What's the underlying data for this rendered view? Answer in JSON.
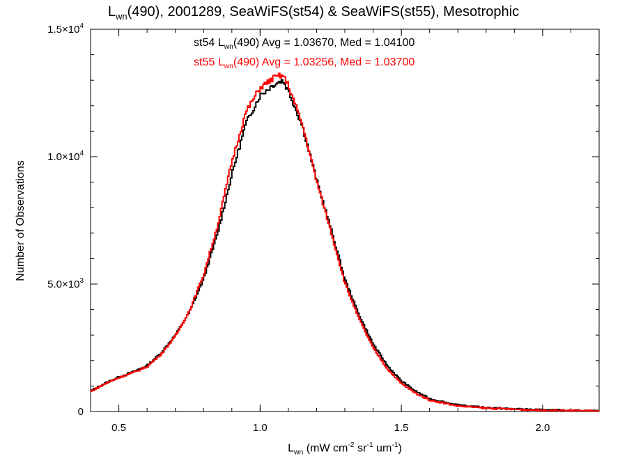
{
  "colors": {
    "st54": "#000000",
    "st55": "#ff0000"
  },
  "title": {
    "main": "L",
    "sub": "wn",
    "rest": "(490), 2001289, SeaWiFS(st54) & SeaWiFS(st55), Mesotrophic"
  },
  "xlabel": {
    "main": "L",
    "sub": "wn",
    "mid": " (mW cm",
    "sup1": "-2",
    "mid2": " sr",
    "sup2": "-1",
    "mid3": " um",
    "sup3": "-1",
    "end": ")"
  },
  "ylabel": "Number of Observations",
  "annotations": {
    "a1": {
      "prefix": "st54 L",
      "sub": "wn",
      "rest": "(490) Avg = 1.03670, Med = 1.04100"
    },
    "a2": {
      "prefix": "st55 L",
      "sub": "wn",
      "rest": "(490) Avg = 1.03256, Med = 1.03700"
    }
  },
  "chart_data": {
    "type": "line",
    "subtype": "step-histogram",
    "xlim": [
      0.4,
      2.2
    ],
    "ylim": [
      0,
      15000
    ],
    "xticks": [
      {
        "v": 0.5,
        "label": "0.5"
      },
      {
        "v": 1.0,
        "label": "1.0"
      },
      {
        "v": 1.5,
        "label": "1.5"
      },
      {
        "v": 2.0,
        "label": "2.0"
      }
    ],
    "yticks": [
      {
        "v": 0,
        "label": "0"
      },
      {
        "v": 5000,
        "label": "5.0×10",
        "exp": "3"
      },
      {
        "v": 10000,
        "label": "1.0×10",
        "exp": "4"
      },
      {
        "v": 15000,
        "label": "1.5×10",
        "exp": "4"
      }
    ],
    "series": [
      {
        "name": "st54",
        "x": [
          0.4,
          0.45,
          0.5,
          0.55,
          0.6,
          0.65,
          0.7,
          0.75,
          0.8,
          0.85,
          0.9,
          0.95,
          1.0,
          1.05,
          1.08,
          1.1,
          1.15,
          1.2,
          1.25,
          1.3,
          1.35,
          1.4,
          1.45,
          1.5,
          1.55,
          1.6,
          1.7,
          1.8,
          1.9,
          2.0,
          2.1,
          2.2
        ],
        "y": [
          800,
          1100,
          1350,
          1550,
          1800,
          2300,
          3000,
          3900,
          5200,
          7000,
          9300,
          11300,
          12400,
          12850,
          13000,
          12600,
          11200,
          9100,
          7200,
          5200,
          3800,
          2650,
          1800,
          1200,
          800,
          500,
          250,
          150,
          100,
          60,
          40,
          25
        ]
      },
      {
        "name": "st55",
        "x": [
          0.4,
          0.45,
          0.5,
          0.55,
          0.6,
          0.65,
          0.7,
          0.75,
          0.8,
          0.85,
          0.9,
          0.95,
          1.0,
          1.05,
          1.08,
          1.1,
          1.15,
          1.2,
          1.25,
          1.3,
          1.35,
          1.4,
          1.45,
          1.5,
          1.55,
          1.6,
          1.7,
          1.8,
          1.9,
          2.0,
          2.1,
          2.2
        ],
        "y": [
          780,
          1080,
          1330,
          1520,
          1760,
          2250,
          2950,
          3950,
          5350,
          7300,
          9800,
          11750,
          12700,
          13100,
          13200,
          12800,
          11250,
          9050,
          7100,
          5050,
          3650,
          2500,
          1680,
          1100,
          720,
          450,
          220,
          130,
          85,
          50,
          35,
          20
        ]
      }
    ]
  }
}
